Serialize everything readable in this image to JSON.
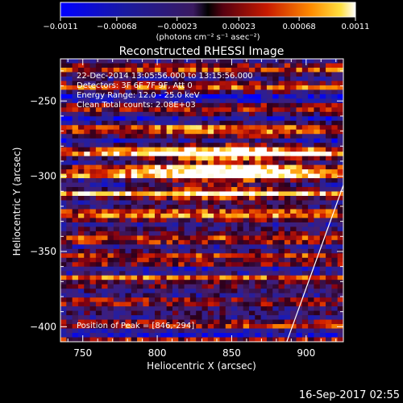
{
  "chart_data": {
    "type": "heatmap",
    "title": "Reconstructed RHESSI Image",
    "xlabel": "Heliocentric X (arcsec)",
    "ylabel": "Heliocentric Y (arcsec)",
    "xlim": [
      735,
      925
    ],
    "ylim": [
      -410,
      -222
    ],
    "x_ticks": [
      750,
      800,
      850,
      900
    ],
    "y_ticks": [
      -250,
      -300,
      -350,
      -400
    ],
    "x_tick_labels": [
      "750",
      "800",
      "850",
      "900"
    ],
    "y_tick_labels": [
      "−250",
      "−300",
      "−350",
      "−400"
    ],
    "colorbar": {
      "min": -0.0011,
      "max": 0.0011,
      "ticks": [
        -0.0011,
        -0.00068,
        -0.00023,
        0.00023,
        0.00068,
        0.0011
      ],
      "tick_labels": [
        "−0.0011",
        "−0.00068",
        "−0.00023",
        "0.00023",
        "0.00068",
        "0.0011"
      ],
      "unit_label": "(photons cm⁻² s⁻¹ asec⁻²)"
    },
    "annotations": [
      "22-Dec-2014 13:05:56.000 to 13:15:56.000",
      "Detectors: 3F 6F 7F 9F, Att 0",
      "Energy Range: 12.0 - 25.0 keV",
      "Clean     Total counts: 2.08E+03"
    ],
    "peak_label": "Position of Peak = [846,-294]",
    "peak": [
      846,
      -294
    ],
    "limb_line": [
      [
        887,
        -410
      ],
      [
        925,
        -306
      ]
    ]
  },
  "footer": {
    "timestamp": "16-Sep-2017 02:55"
  },
  "colors": {
    "background": "#000000",
    "text": "#ffffff"
  }
}
